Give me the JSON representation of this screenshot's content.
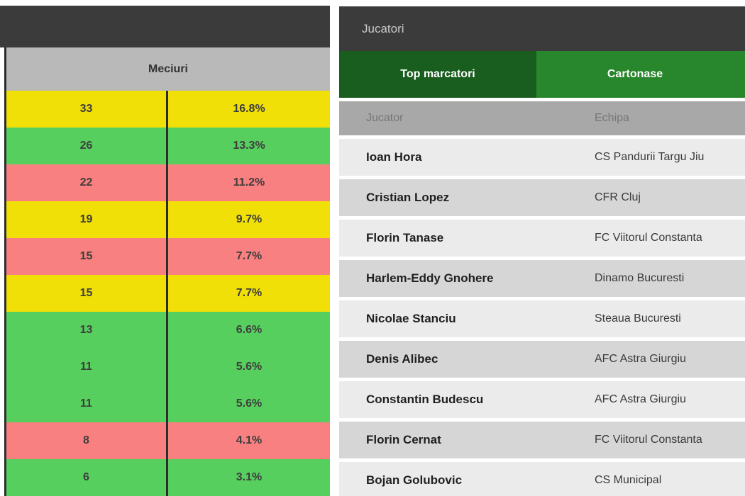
{
  "left_panel": {
    "matches_header": "Meciuri",
    "status_colors": {
      "yellow": "#f0e008",
      "green": "#57cf5e",
      "red": "#f98080"
    },
    "rows": [
      {
        "value": "33",
        "percent": "16.8%",
        "color": "yellow"
      },
      {
        "value": "26",
        "percent": "13.3%",
        "color": "green"
      },
      {
        "value": "22",
        "percent": "11.2%",
        "color": "red"
      },
      {
        "value": "19",
        "percent": "9.7%",
        "color": "yellow"
      },
      {
        "value": "15",
        "percent": "7.7%",
        "color": "red"
      },
      {
        "value": "15",
        "percent": "7.7%",
        "color": "yellow"
      },
      {
        "value": "13",
        "percent": "6.6%",
        "color": "green"
      },
      {
        "value": "11",
        "percent": "5.6%",
        "color": "green"
      },
      {
        "value": "11",
        "percent": "5.6%",
        "color": "green"
      },
      {
        "value": "8",
        "percent": "4.1%",
        "color": "red"
      },
      {
        "value": "6",
        "percent": "3.1%",
        "color": "green"
      }
    ]
  },
  "right_panel": {
    "title": "Jucatori",
    "tabs": [
      {
        "label": "Top marcatori",
        "active": true,
        "color": "#1a5e1f"
      },
      {
        "label": "Cartonase",
        "active": false,
        "color": "#28862c"
      }
    ],
    "columns": {
      "player": "Jucator",
      "team": "Echipa"
    },
    "rows": [
      {
        "player": "Ioan Hora",
        "team": "CS Pandurii Targu Jiu"
      },
      {
        "player": "Cristian Lopez",
        "team": "CFR Cluj"
      },
      {
        "player": "Florin Tanase",
        "team": "FC Viitorul Constanta"
      },
      {
        "player": "Harlem-Eddy Gnohere",
        "team": "Dinamo Bucuresti"
      },
      {
        "player": "Nicolae Stanciu",
        "team": "Steaua Bucuresti"
      },
      {
        "player": "Denis Alibec",
        "team": "AFC Astra Giurgiu"
      },
      {
        "player": "Constantin Budescu",
        "team": "AFC Astra Giurgiu"
      },
      {
        "player": "Florin Cernat",
        "team": "FC Viitorul Constanta"
      },
      {
        "player": "Bojan Golubovic",
        "team": "CS Municipal"
      }
    ]
  }
}
